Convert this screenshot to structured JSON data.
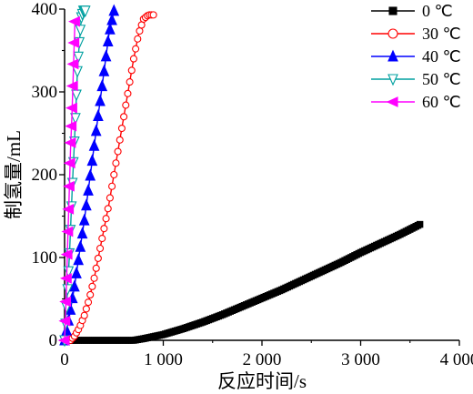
{
  "chart_data": {
    "type": "line",
    "xlabel": "反应时间/s",
    "ylabel": "制氢量/mL",
    "xlim": [
      0,
      4000
    ],
    "ylim": [
      0,
      400
    ],
    "xticks": [
      0,
      1000,
      2000,
      3000,
      4000
    ],
    "xtick_labels": [
      "0",
      "1 000",
      "2 000",
      "3 000",
      "4 000"
    ],
    "yticks": [
      0,
      100,
      200,
      300,
      400
    ],
    "ytick_labels": [
      "0",
      "100",
      "200",
      "300",
      "400"
    ],
    "grid": false,
    "legend_position": "top-right",
    "series": [
      {
        "name": "0 ℃",
        "color": "#000000",
        "marker": "square",
        "filled": true,
        "x": [
          0,
          300,
          600,
          700,
          800,
          1000,
          1200,
          1400,
          1600,
          1800,
          2000,
          2200,
          2400,
          2600,
          2800,
          3000,
          3200,
          3400,
          3600
        ],
        "y": [
          0,
          0,
          0,
          0,
          2,
          7,
          14,
          22,
          31,
          41,
          51,
          61,
          72,
          83,
          94,
          106,
          117,
          128,
          140
        ]
      },
      {
        "name": "30 ℃",
        "color": "#ff0000",
        "marker": "circle",
        "filled": false,
        "x": [
          60,
          100,
          150,
          200,
          250,
          300,
          350,
          400,
          450,
          500,
          550,
          600,
          650,
          700,
          750,
          800,
          850,
          900
        ],
        "y": [
          0,
          5,
          15,
          30,
          50,
          75,
          105,
          135,
          165,
          200,
          235,
          270,
          305,
          340,
          370,
          388,
          393,
          393
        ],
        "x_step": 20
      },
      {
        "name": "40 ℃",
        "color": "#0000ff",
        "marker": "triangle-up",
        "filled": true,
        "x": [
          0,
          50,
          100,
          150,
          200,
          250,
          300,
          350,
          400,
          450,
          500,
          510
        ],
        "y": [
          0,
          30,
          65,
          105,
          145,
          190,
          235,
          280,
          325,
          370,
          398,
          398
        ],
        "x_step": 20
      },
      {
        "name": "50 ℃",
        "color": "#00a0a0",
        "marker": "triangle-down",
        "filled": false,
        "x": [
          0,
          20,
          50,
          80,
          100,
          130,
          150,
          170,
          190,
          210
        ],
        "y": [
          0,
          40,
          105,
          190,
          240,
          325,
          360,
          390,
          398,
          398
        ],
        "x_step": 10
      },
      {
        "name": "60 ℃",
        "color": "#ff00ff",
        "marker": "triangle-left",
        "filled": true,
        "x": [
          0,
          15,
          30,
          45,
          60,
          75,
          90,
          105
        ],
        "y": [
          0,
          50,
          112,
          170,
          230,
          273,
          330,
          385
        ],
        "x_step": 7
      }
    ]
  }
}
